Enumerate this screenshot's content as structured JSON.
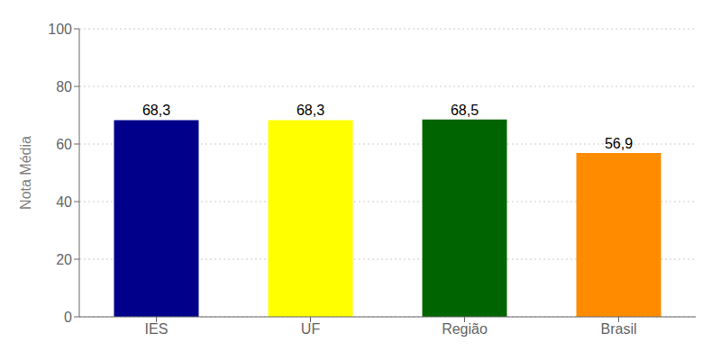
{
  "chart_data": {
    "type": "bar",
    "categories": [
      "IES",
      "UF",
      "Região",
      "Brasil"
    ],
    "values": [
      68.3,
      68.3,
      68.5,
      56.9
    ],
    "value_labels": [
      "68,3",
      "68,3",
      "68,5",
      "56,9"
    ],
    "data_labels": true,
    "colors": [
      "#00008B",
      "#FFFF00",
      "#006400",
      "#FF8C00"
    ],
    "ylabel": "Nota Média",
    "ylim": [
      0,
      100
    ],
    "yticks": [
      0,
      20,
      40,
      60,
      80,
      100
    ],
    "grid": true
  }
}
